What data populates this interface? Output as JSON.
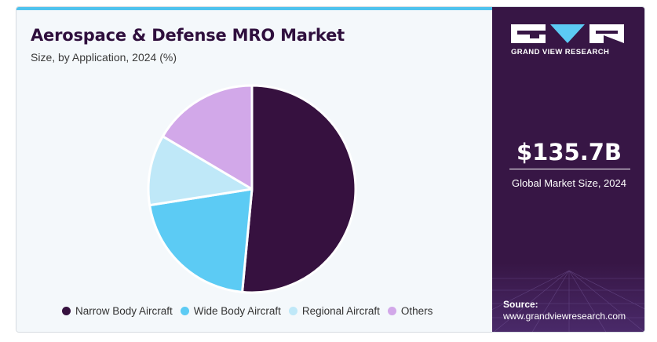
{
  "header": {
    "title": "Aerospace & Defense MRO Market",
    "subtitle": "Size, by Application, 2024 (%)"
  },
  "chart_data": {
    "type": "pie",
    "title": "Aerospace & Defense MRO Market",
    "subtitle": "Size, by Application, 2024 (%)",
    "categories": [
      "Narrow Body Aircraft",
      "Wide Body Aircraft",
      "Regional Aircraft",
      "Others"
    ],
    "values": [
      51.5,
      21.0,
      11.0,
      16.5
    ],
    "colors": [
      "#36113f",
      "#5ccbf4",
      "#bfe8f8",
      "#d2a8e9"
    ],
    "legend_position": "bottom",
    "start": "top, clockwise"
  },
  "legend": {
    "items": [
      {
        "label": "Narrow Body Aircraft",
        "color": "#36113f"
      },
      {
        "label": "Wide Body Aircraft",
        "color": "#5ccbf4"
      },
      {
        "label": "Regional Aircraft",
        "color": "#bfe8f8"
      },
      {
        "label": "Others",
        "color": "#d2a8e9"
      }
    ]
  },
  "sidebar": {
    "logo_text": "GRAND VIEW RESEARCH",
    "market_value": "$135.7B",
    "market_label": "Global Market Size, 2024",
    "source_label": "Source:",
    "source_url": "www.grandviewresearch.com",
    "background_color": "#371645"
  }
}
